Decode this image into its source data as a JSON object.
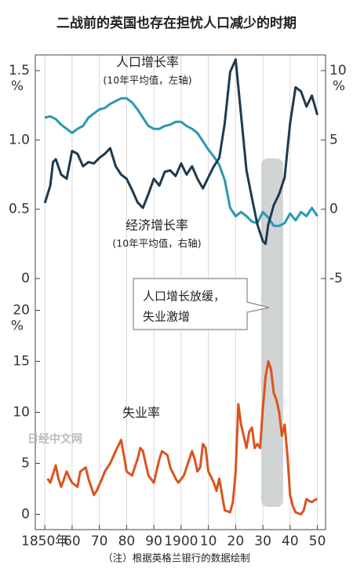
{
  "title": "二战前的英国也存在担忧人口减少的时期",
  "note": "（注）根据英格兰银行的数据绘制",
  "watermark": "日经中文网",
  "callout": [
    "人口增长放缓，",
    "失业激增"
  ],
  "chart_data": [
    {
      "type": "line",
      "xlim": [
        1846.5,
        1953
      ],
      "ylim": [
        0,
        1.6
      ],
      "yticks": [
        {
          "value": 1.5,
          "label": "1.5"
        },
        {
          "value": 1,
          "label": "1.0"
        },
        0.5,
        0
      ],
      "y_unit": "%",
      "y2lim": [
        -5,
        11
      ],
      "y2ticks": [
        10,
        5,
        0,
        -5
      ],
      "y2_unit": "%",
      "series": [
        {
          "name": "人口增长率",
          "subtitle": "(10年平均值，左轴)",
          "color": "#2b98b4",
          "x": [
            1850,
            1852,
            1854,
            1856,
            1858,
            1860,
            1862,
            1864,
            1866,
            1868,
            1870,
            1872,
            1874,
            1876,
            1878,
            1880,
            1882,
            1884,
            1886,
            1888,
            1890,
            1892,
            1894,
            1896,
            1898,
            1900,
            1902,
            1904,
            1906,
            1908,
            1910,
            1912,
            1914,
            1916,
            1918,
            1920,
            1922,
            1924,
            1926,
            1928,
            1930,
            1932,
            1934,
            1936,
            1938,
            1940,
            1942,
            1944,
            1946,
            1948,
            1950
          ],
          "values": [
            1.16,
            1.17,
            1.15,
            1.11,
            1.08,
            1.05,
            1.08,
            1.1,
            1.16,
            1.19,
            1.22,
            1.23,
            1.26,
            1.28,
            1.3,
            1.3,
            1.27,
            1.22,
            1.16,
            1.1,
            1.08,
            1.08,
            1.1,
            1.11,
            1.13,
            1.13,
            1.1,
            1.08,
            1.05,
            0.99,
            0.93,
            0.88,
            0.82,
            0.71,
            0.51,
            0.45,
            0.48,
            0.45,
            0.41,
            0.4,
            0.48,
            0.44,
            0.38,
            0.38,
            0.4,
            0.47,
            0.42,
            0.48,
            0.45,
            0.51,
            0.45
          ]
        },
        {
          "name": "经济增长率",
          "subtitle": "(10年平均值，右轴)",
          "color": "#1e3a50",
          "axis": "y2",
          "x": [
            1850,
            1852,
            1853,
            1854,
            1856,
            1858,
            1860,
            1862,
            1864,
            1866,
            1868,
            1870,
            1872,
            1874,
            1876,
            1878,
            1880,
            1882,
            1884,
            1886,
            1888,
            1890,
            1892,
            1894,
            1896,
            1898,
            1900,
            1902,
            1904,
            1906,
            1908,
            1910,
            1912,
            1914,
            1916,
            1918,
            1920,
            1922,
            1924,
            1926,
            1928,
            1930,
            1931,
            1932,
            1934,
            1936,
            1938,
            1940,
            1942,
            1944,
            1946,
            1948,
            1950
          ],
          "values": [
            0.45,
            1.7,
            3.4,
            3.6,
            2.5,
            2.2,
            4.2,
            4,
            3.1,
            3.4,
            3.3,
            3.7,
            4,
            4.4,
            3.1,
            2.5,
            2.2,
            1.4,
            0.5,
            0.1,
            1.1,
            2.2,
            1.7,
            2.7,
            2.8,
            2.4,
            3.3,
            2.5,
            3.1,
            2.2,
            1.5,
            2.3,
            3.1,
            3.7,
            6.2,
            9.9,
            10.8,
            6.8,
            2.8,
            0.8,
            -1.1,
            -2.3,
            -2.5,
            -1.1,
            0.3,
            1.1,
            2.3,
            6.2,
            8.8,
            8.5,
            7.4,
            8.2,
            6.8
          ]
        }
      ]
    },
    {
      "type": "line",
      "xlim": [
        1846.5,
        1953
      ],
      "xticks": [
        {
          "value": 1850,
          "label": "1850年"
        },
        {
          "value": 1860,
          "label": "60"
        },
        {
          "value": 1870,
          "label": "70"
        },
        {
          "value": 1880,
          "label": "80"
        },
        {
          "value": 1890,
          "label": "90"
        },
        1900,
        {
          "value": 1910,
          "label": "10"
        },
        {
          "value": 1920,
          "label": "20"
        },
        {
          "value": 1930,
          "label": "30"
        },
        {
          "value": 1940,
          "label": "40"
        },
        {
          "value": 1950,
          "label": "50"
        }
      ],
      "ylim": [
        -1.5,
        20
      ],
      "yticks": [
        20,
        15,
        10,
        5,
        0
      ],
      "y_unit": "%",
      "grid": true,
      "series": [
        {
          "name": "失业率",
          "color": "#d9541e",
          "x": [
            1851,
            1852,
            1854,
            1855,
            1856,
            1858,
            1859,
            1860,
            1862,
            1863,
            1865,
            1866,
            1868,
            1869,
            1871,
            1872,
            1874,
            1876,
            1878,
            1879,
            1880,
            1882,
            1884,
            1885,
            1886,
            1887,
            1888,
            1890,
            1892,
            1893,
            1895,
            1896,
            1898,
            1899,
            1901,
            1902,
            1904,
            1905,
            1906,
            1907,
            1908,
            1909,
            1910,
            1912,
            1913,
            1914,
            1916,
            1918,
            1919,
            1920,
            1921,
            1922,
            1924,
            1925,
            1926,
            1927,
            1928,
            1929,
            1930,
            1931,
            1932,
            1933,
            1934,
            1935,
            1936,
            1937,
            1938,
            1939,
            1940,
            1941,
            1942,
            1944,
            1945,
            1946,
            1947,
            1948,
            1949,
            1950
          ],
          "values": [
            3.5,
            3.1,
            4.8,
            3.5,
            2.7,
            4.2,
            3.6,
            3.1,
            2.7,
            4.2,
            4.6,
            3.5,
            1.9,
            2.3,
            3.5,
            4.2,
            5,
            6.2,
            7.3,
            5.8,
            4.2,
            3.8,
            5.4,
            6.5,
            6.2,
            5,
            3.8,
            3.1,
            5.4,
            6.2,
            5.8,
            4.6,
            3.5,
            3.1,
            3.8,
            4.6,
            6.2,
            5.4,
            4.2,
            4.6,
            6.9,
            6.5,
            4.2,
            3.1,
            2.3,
            3.5,
            0.4,
            0.2,
            1.2,
            4.2,
            10.8,
            8.8,
            6.5,
            8.1,
            8.5,
            6.5,
            6.9,
            6.5,
            10.4,
            13.5,
            15,
            14.2,
            11.9,
            11.2,
            10,
            7.7,
            8.8,
            5.8,
            1.9,
            0.8,
            0.2,
            0,
            0.4,
            1.5,
            1.3,
            1.2,
            1.4,
            1.5
          ]
        }
      ]
    }
  ]
}
